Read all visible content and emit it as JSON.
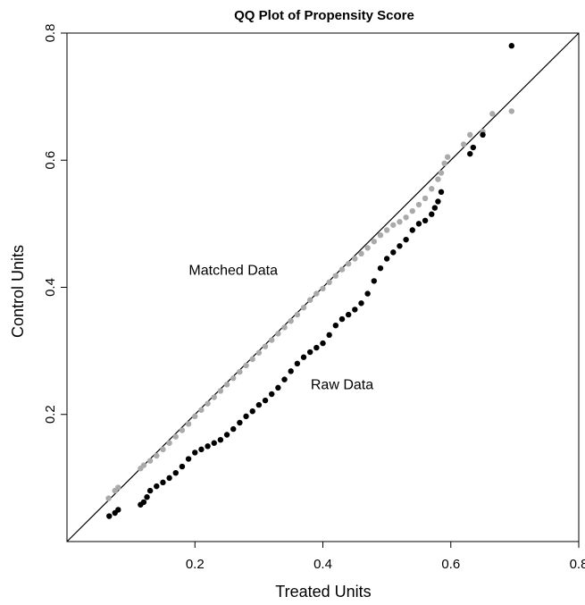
{
  "chart_data": {
    "type": "scatter",
    "title": "QQ Plot of Propensity Score",
    "xlabel": "Treated Units",
    "ylabel": "Control Units",
    "xlim": [
      0.0,
      0.8
    ],
    "ylim": [
      0.0,
      0.8
    ],
    "x_ticks": [
      0.2,
      0.4,
      0.6,
      0.8
    ],
    "y_ticks": [
      0.2,
      0.4,
      0.6,
      0.8
    ],
    "x_tick_labels": [
      "0.2",
      "0.4",
      "0.6",
      "0.8"
    ],
    "y_tick_labels": [
      "0.2",
      "0.4",
      "0.6",
      "0.8"
    ],
    "grid": false,
    "reference_line": "y = x",
    "annotations": [
      {
        "text": "Matched Data",
        "x": 0.26,
        "y": 0.42
      },
      {
        "text": "Raw Data",
        "x": 0.43,
        "y": 0.24
      }
    ],
    "series": [
      {
        "color": "#aaaaaa",
        "points": [
          [
            0.065,
            0.068
          ],
          [
            0.075,
            0.08
          ],
          [
            0.08,
            0.085
          ],
          [
            0.115,
            0.115
          ],
          [
            0.12,
            0.12
          ],
          [
            0.13,
            0.127
          ],
          [
            0.14,
            0.135
          ],
          [
            0.15,
            0.145
          ],
          [
            0.16,
            0.155
          ],
          [
            0.17,
            0.165
          ],
          [
            0.18,
            0.175
          ],
          [
            0.19,
            0.185
          ],
          [
            0.2,
            0.197
          ],
          [
            0.21,
            0.207
          ],
          [
            0.22,
            0.217
          ],
          [
            0.23,
            0.227
          ],
          [
            0.24,
            0.237
          ],
          [
            0.25,
            0.247
          ],
          [
            0.26,
            0.257
          ],
          [
            0.27,
            0.267
          ],
          [
            0.28,
            0.277
          ],
          [
            0.29,
            0.287
          ],
          [
            0.3,
            0.297
          ],
          [
            0.31,
            0.307
          ],
          [
            0.32,
            0.317
          ],
          [
            0.33,
            0.327
          ],
          [
            0.34,
            0.337
          ],
          [
            0.35,
            0.347
          ],
          [
            0.36,
            0.357
          ],
          [
            0.37,
            0.368
          ],
          [
            0.38,
            0.38
          ],
          [
            0.39,
            0.39
          ],
          [
            0.4,
            0.398
          ],
          [
            0.41,
            0.408
          ],
          [
            0.42,
            0.418
          ],
          [
            0.43,
            0.428
          ],
          [
            0.44,
            0.437
          ],
          [
            0.45,
            0.445
          ],
          [
            0.46,
            0.453
          ],
          [
            0.47,
            0.462
          ],
          [
            0.48,
            0.472
          ],
          [
            0.49,
            0.482
          ],
          [
            0.5,
            0.49
          ],
          [
            0.51,
            0.498
          ],
          [
            0.52,
            0.503
          ],
          [
            0.53,
            0.51
          ],
          [
            0.54,
            0.52
          ],
          [
            0.55,
            0.53
          ],
          [
            0.56,
            0.54
          ],
          [
            0.57,
            0.555
          ],
          [
            0.58,
            0.57
          ],
          [
            0.585,
            0.58
          ],
          [
            0.59,
            0.595
          ],
          [
            0.595,
            0.605
          ],
          [
            0.62,
            0.625
          ],
          [
            0.63,
            0.64
          ],
          [
            0.65,
            0.645
          ],
          [
            0.665,
            0.673
          ],
          [
            0.695,
            0.677
          ]
        ]
      },
      {
        "color": "#000000",
        "points": [
          [
            0.066,
            0.04
          ],
          [
            0.075,
            0.045
          ],
          [
            0.08,
            0.05
          ],
          [
            0.115,
            0.058
          ],
          [
            0.12,
            0.062
          ],
          [
            0.125,
            0.07
          ],
          [
            0.13,
            0.08
          ],
          [
            0.14,
            0.087
          ],
          [
            0.15,
            0.093
          ],
          [
            0.16,
            0.1
          ],
          [
            0.17,
            0.108
          ],
          [
            0.18,
            0.118
          ],
          [
            0.19,
            0.13
          ],
          [
            0.2,
            0.14
          ],
          [
            0.21,
            0.145
          ],
          [
            0.22,
            0.15
          ],
          [
            0.23,
            0.155
          ],
          [
            0.24,
            0.16
          ],
          [
            0.25,
            0.168
          ],
          [
            0.26,
            0.177
          ],
          [
            0.27,
            0.187
          ],
          [
            0.28,
            0.197
          ],
          [
            0.29,
            0.205
          ],
          [
            0.3,
            0.215
          ],
          [
            0.31,
            0.222
          ],
          [
            0.32,
            0.232
          ],
          [
            0.33,
            0.242
          ],
          [
            0.34,
            0.255
          ],
          [
            0.35,
            0.268
          ],
          [
            0.36,
            0.28
          ],
          [
            0.37,
            0.29
          ],
          [
            0.38,
            0.298
          ],
          [
            0.39,
            0.305
          ],
          [
            0.4,
            0.312
          ],
          [
            0.41,
            0.325
          ],
          [
            0.42,
            0.34
          ],
          [
            0.43,
            0.35
          ],
          [
            0.44,
            0.357
          ],
          [
            0.45,
            0.365
          ],
          [
            0.46,
            0.375
          ],
          [
            0.47,
            0.39
          ],
          [
            0.48,
            0.41
          ],
          [
            0.49,
            0.43
          ],
          [
            0.5,
            0.445
          ],
          [
            0.51,
            0.455
          ],
          [
            0.52,
            0.465
          ],
          [
            0.53,
            0.475
          ],
          [
            0.54,
            0.49
          ],
          [
            0.55,
            0.5
          ],
          [
            0.56,
            0.505
          ],
          [
            0.57,
            0.515
          ],
          [
            0.575,
            0.525
          ],
          [
            0.58,
            0.535
          ],
          [
            0.585,
            0.55
          ],
          [
            0.63,
            0.61
          ],
          [
            0.635,
            0.62
          ],
          [
            0.65,
            0.64
          ],
          [
            0.695,
            0.78
          ]
        ]
      }
    ]
  }
}
